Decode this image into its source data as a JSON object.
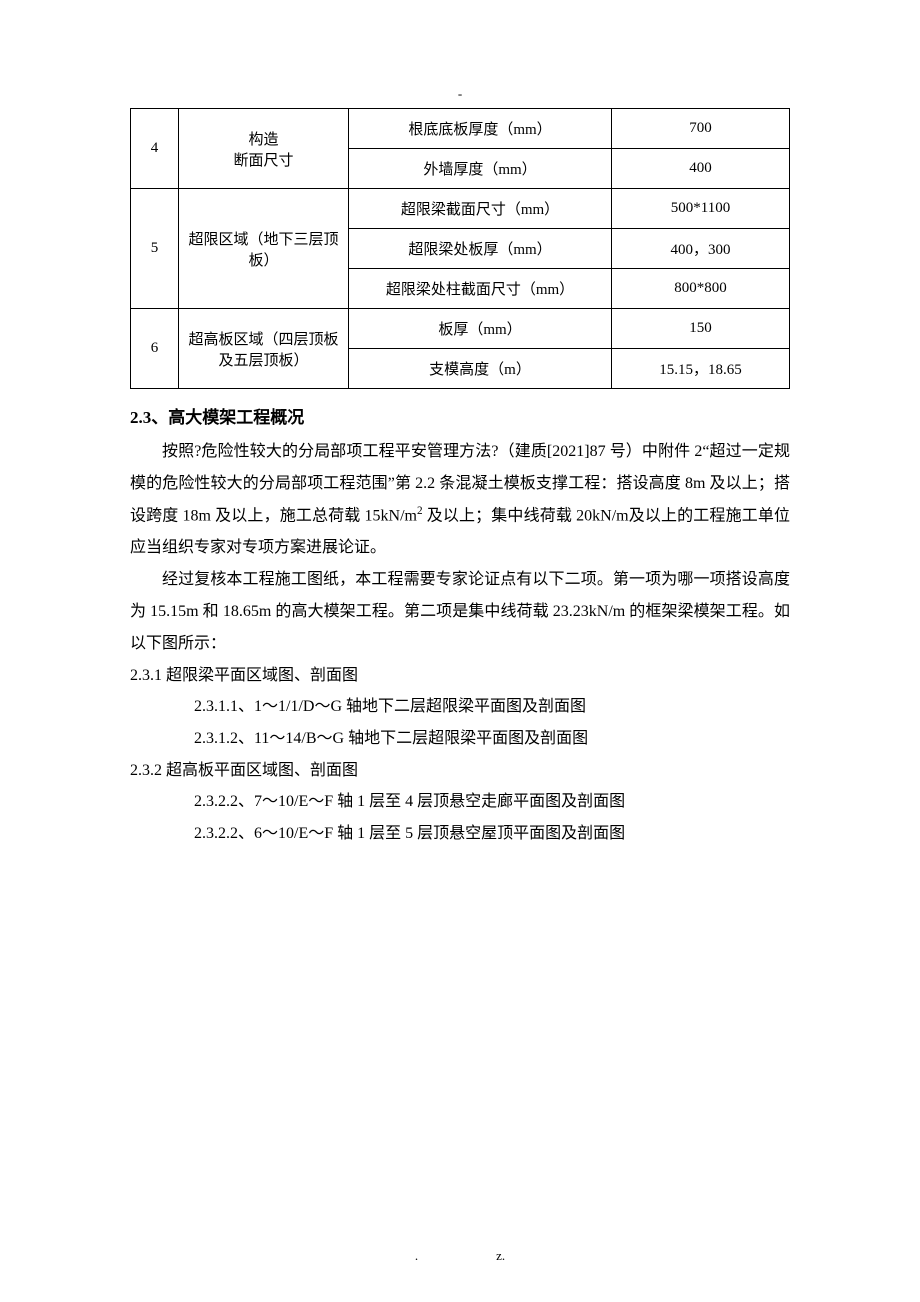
{
  "top_marker": "-",
  "table": {
    "rows": [
      {
        "idx": "4",
        "idx_rowspan": 2,
        "label": "构造\n断面尺寸",
        "label_rowspan": 2,
        "param": "根底底板厚度（mm）",
        "value": "700"
      },
      {
        "param": "外墙厚度（mm）",
        "value": "400"
      },
      {
        "idx": "5",
        "idx_rowspan": 3,
        "label": "超限区域（地下三层顶板）",
        "label_rowspan": 3,
        "param": "超限梁截面尺寸（mm）",
        "value": "500*1100"
      },
      {
        "param": "超限梁处板厚（mm）",
        "value": "400，300"
      },
      {
        "param": "超限梁处柱截面尺寸（mm）",
        "value": "800*800"
      },
      {
        "idx": "6",
        "idx_rowspan": 2,
        "label": "超高板区域（四层顶板及五层顶板）",
        "label_rowspan": 2,
        "param": "板厚（mm）",
        "value": "150"
      },
      {
        "param": "支模高度（m）",
        "value": "15.15，18.65"
      }
    ]
  },
  "section": {
    "heading": "2.3、高大模架工程概况",
    "para1_a": "按照?危险性较大的分局部项工程平安管理方法?（建质[2021]87 号）中附件 2“超过一定规模的危险性较大的分局部项工程范围”第 2.2 条混凝土模板支撑工程：搭设高度 8m 及以上；搭设跨度 18m 及以上，施工总荷载 15kN/m",
    "para1_b": " 及以上；集中线荷载 20kN/m及以上的工程施工单位应当组织专家对专项方案进展论证。",
    "para2": "经过复核本工程施工图纸，本工程需要专家论证点有以下二项。第一项为哪一项搭设高度为 15.15m 和 18.65m 的高大模架工程。第二项是集中线荷载 23.23kN/m 的框架梁模架工程。如以下图所示：",
    "sub1": "2.3.1 超限梁平面区域图、剖面图",
    "sub1_1": "2.3.1.1、1～1/1/D～G 轴地下二层超限梁平面图及剖面图",
    "sub1_2": "2.3.1.2、11～14/B～G 轴地下二层超限梁平面图及剖面图",
    "sub2": "2.3.2 超高板平面区域图、剖面图",
    "sub2_1": "2.3.2.2、7～10/E～F 轴 1 层至 4 层顶悬空走廊平面图及剖面图",
    "sub2_2": "2.3.2.2、6～10/E～F 轴 1 层至 5 层顶悬空屋顶平面图及剖面图"
  },
  "footer": ".      z."
}
